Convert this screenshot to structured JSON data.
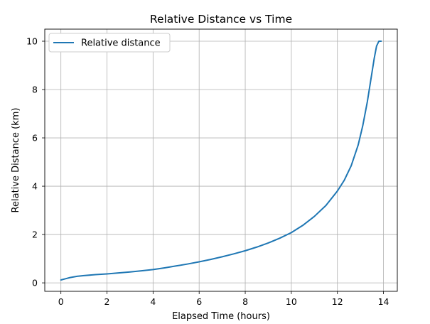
{
  "chart_data": {
    "type": "line",
    "title": "Relative Distance vs Time",
    "xlabel": "Elapsed Time (hours)",
    "ylabel": "Relative Distance (km)",
    "xlim": [
      -0.7,
      14.6
    ],
    "ylim": [
      -0.35,
      10.5
    ],
    "xticks": [
      0,
      2,
      4,
      6,
      8,
      10,
      12,
      14
    ],
    "yticks": [
      0,
      2,
      4,
      6,
      8,
      10
    ],
    "grid": true,
    "legend_position": "upper-left",
    "series": [
      {
        "name": "Relative distance",
        "color": "#1f77b4",
        "x": [
          0,
          0.2,
          0.4,
          0.7,
          1.0,
          1.5,
          2.0,
          2.5,
          3.0,
          3.5,
          4.0,
          4.5,
          5.0,
          5.5,
          6.0,
          6.5,
          7.0,
          7.5,
          8.0,
          8.5,
          9.0,
          9.5,
          10.0,
          10.5,
          11.0,
          11.5,
          12.0,
          12.3,
          12.6,
          12.9,
          13.1,
          13.3,
          13.5,
          13.6,
          13.7,
          13.8,
          13.9
        ],
        "y": [
          0.12,
          0.17,
          0.22,
          0.27,
          0.3,
          0.34,
          0.37,
          0.41,
          0.45,
          0.5,
          0.55,
          0.62,
          0.7,
          0.78,
          0.87,
          0.97,
          1.08,
          1.2,
          1.33,
          1.48,
          1.65,
          1.85,
          2.08,
          2.38,
          2.75,
          3.2,
          3.8,
          4.25,
          4.85,
          5.7,
          6.5,
          7.5,
          8.7,
          9.3,
          9.8,
          10.0,
          10.0
        ]
      }
    ]
  }
}
